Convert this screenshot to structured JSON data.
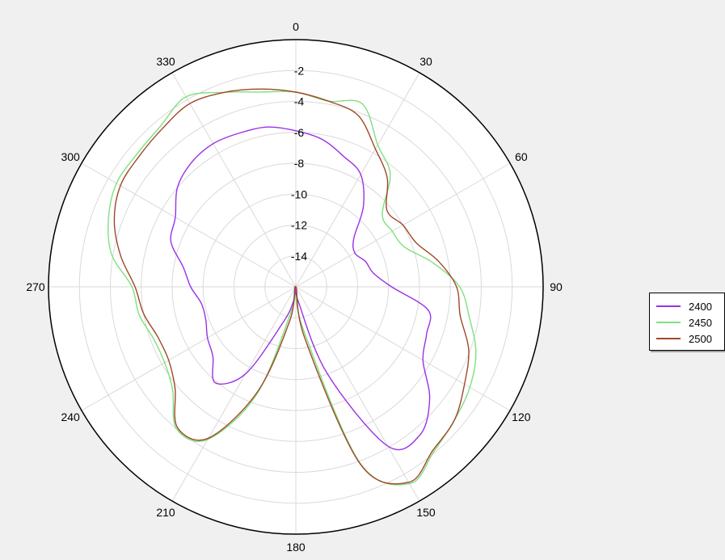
{
  "chart_data": {
    "type": "polar",
    "angle_ticks": [
      "0",
      "30",
      "60",
      "90",
      "120",
      "150",
      "180",
      "210",
      "240",
      "270",
      "300",
      "330"
    ],
    "radial_ticks": [
      "-2",
      "-4",
      "-6",
      "-8",
      "-10",
      "-12",
      "-14"
    ],
    "rlim": [
      -16,
      0
    ],
    "grid": true,
    "legend_position": "right",
    "angles_deg": [
      0,
      10,
      20,
      30,
      40,
      50,
      60,
      70,
      80,
      90,
      100,
      110,
      120,
      130,
      140,
      150,
      160,
      170,
      180,
      190,
      200,
      210,
      220,
      230,
      240,
      250,
      260,
      270,
      280,
      290,
      300,
      310,
      320,
      330,
      340,
      350
    ],
    "series": [
      {
        "name": "2400",
        "color": "#9932e6",
        "values": [
          -5.9,
          -6.3,
          -7.0,
          -7.6,
          -9.2,
          -11.1,
          -11.6,
          -11.2,
          -10.9,
          -9.8,
          -7.3,
          -7.0,
          -6.5,
          -4.7,
          -3.5,
          -4.1,
          -10.0,
          -15.0,
          -16.0,
          -15.0,
          -13.5,
          -9.5,
          -7.9,
          -9.0,
          -9.4,
          -9.8,
          -9.8,
          -9.2,
          -8.6,
          -7.4,
          -7.0,
          -6.0,
          -5.5,
          -5.3,
          -5.4,
          -5.5
        ]
      },
      {
        "name": "2450",
        "color": "#7fe07f",
        "values": [
          -3.4,
          -3.8,
          -3.4,
          -5.4,
          -6.5,
          -8.7,
          -8.8,
          -8.5,
          -7.0,
          -5.4,
          -4.6,
          -3.6,
          -3.0,
          -2.6,
          -2.1,
          -1.3,
          -3.9,
          -13.2,
          -16.0,
          -14.5,
          -8.6,
          -4.6,
          -4.0,
          -5.6,
          -6.2,
          -6.2,
          -5.7,
          -5.4,
          -3.9,
          -3.1,
          -2.6,
          -2.6,
          -2.4,
          -1.8,
          -2.6,
          -3.2
        ]
      },
      {
        "name": "2500",
        "color": "#a0472a",
        "values": [
          -3.4,
          -3.8,
          -4.2,
          -5.7,
          -6.8,
          -8.3,
          -8.0,
          -7.7,
          -6.6,
          -5.6,
          -5.2,
          -4.1,
          -3.4,
          -2.6,
          -2.2,
          -1.4,
          -3.8,
          -12.6,
          -16.0,
          -13.8,
          -8.8,
          -4.7,
          -4.1,
          -5.8,
          -6.5,
          -6.5,
          -6.0,
          -5.6,
          -4.5,
          -3.5,
          -2.9,
          -2.8,
          -2.6,
          -2.3,
          -2.6,
          -3.0
        ]
      }
    ]
  }
}
